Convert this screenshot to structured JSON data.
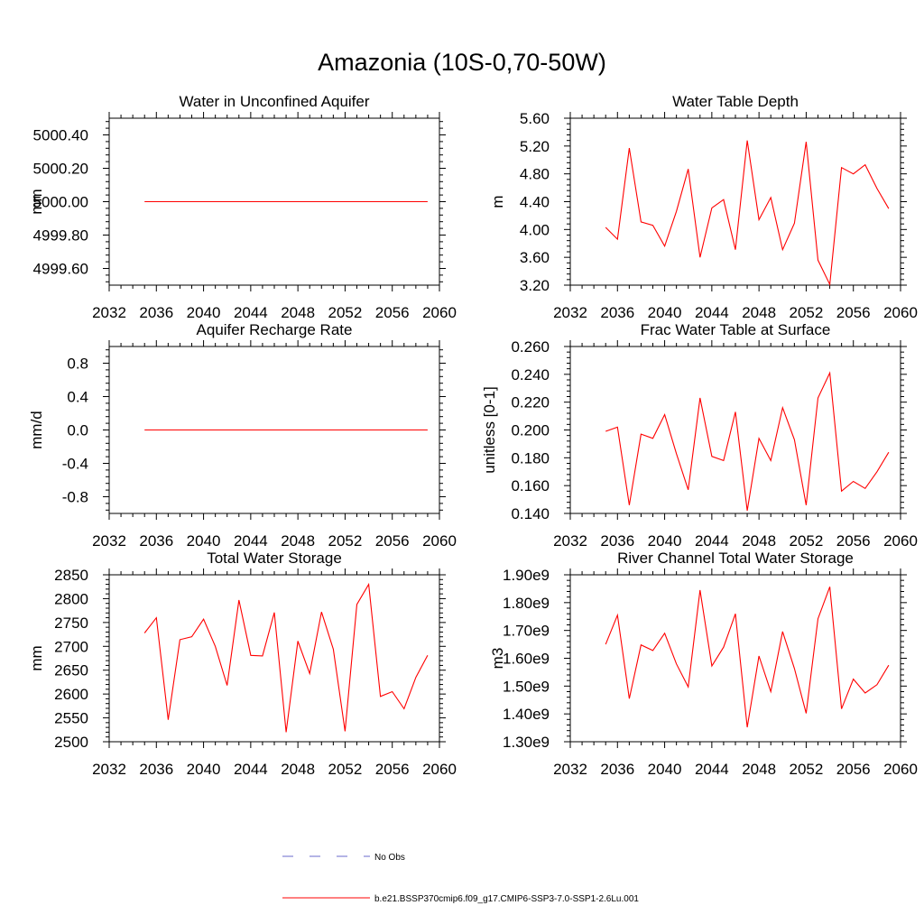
{
  "page_title": "Amazonia (10S-0,70-50W)",
  "legend": {
    "obs_label": "No Obs",
    "obs_color": "#6a6acd",
    "model_label": "b.e21.BSSP370cmip6.f09_g17.CMIP6-SSP3-7.0-SSP1-2.6Lu.001",
    "model_color": "#ff0000"
  },
  "chart_data": [
    {
      "type": "line",
      "title": "Water in Unconfined Aquifer",
      "xlabel": "",
      "ylabel": "mm",
      "xlim": [
        2032,
        2060
      ],
      "ylim": [
        4999.5,
        5000.5
      ],
      "xticks": [
        2032,
        2036,
        2040,
        2044,
        2048,
        2052,
        2056,
        2060
      ],
      "xtick_labels": [
        "2032",
        "2036",
        "2040",
        "2044",
        "2048",
        "2052",
        "2056",
        "2060"
      ],
      "yticks": [
        4999.6,
        4999.8,
        5000.0,
        5000.2,
        5000.4
      ],
      "ytick_labels": [
        "4999.60",
        "4999.80",
        "5000.00",
        "5000.20",
        "5000.40"
      ],
      "grid": false,
      "x": [
        2035,
        2036,
        2037,
        2038,
        2039,
        2040,
        2041,
        2042,
        2043,
        2044,
        2045,
        2046,
        2047,
        2048,
        2049,
        2050,
        2051,
        2052,
        2053,
        2054,
        2055,
        2056,
        2057,
        2058,
        2059
      ],
      "series": [
        {
          "values": [
            5000,
            5000,
            5000,
            5000,
            5000,
            5000,
            5000,
            5000,
            5000,
            5000,
            5000,
            5000,
            5000,
            5000,
            5000,
            5000,
            5000,
            5000,
            5000,
            5000,
            5000,
            5000,
            5000,
            5000,
            5000
          ],
          "color": "#ff0000"
        }
      ]
    },
    {
      "type": "line",
      "title": "Water Table Depth",
      "xlabel": "",
      "ylabel": "m",
      "xlim": [
        2032,
        2060
      ],
      "ylim": [
        3.2,
        5.6
      ],
      "xticks": [
        2032,
        2036,
        2040,
        2044,
        2048,
        2052,
        2056,
        2060
      ],
      "xtick_labels": [
        "2032",
        "2036",
        "2040",
        "2044",
        "2048",
        "2052",
        "2056",
        "2060"
      ],
      "yticks": [
        3.2,
        3.6,
        4.0,
        4.4,
        4.8,
        5.2,
        5.6
      ],
      "ytick_labels": [
        "3.20",
        "3.60",
        "4.00",
        "4.40",
        "4.80",
        "5.20",
        "5.60"
      ],
      "grid": false,
      "x": [
        2035,
        2036,
        2037,
        2038,
        2039,
        2040,
        2041,
        2042,
        2043,
        2044,
        2045,
        2046,
        2047,
        2048,
        2049,
        2050,
        2051,
        2052,
        2053,
        2054,
        2055,
        2056,
        2057,
        2058,
        2059
      ],
      "series": [
        {
          "values": [
            4.03,
            3.86,
            5.17,
            4.11,
            4.06,
            3.76,
            4.26,
            4.87,
            3.6,
            4.31,
            4.43,
            3.71,
            5.28,
            4.14,
            4.46,
            3.71,
            4.09,
            5.26,
            3.56,
            3.21,
            4.89,
            4.8,
            4.93,
            4.59,
            4.3
          ],
          "color": "#ff0000"
        }
      ]
    },
    {
      "type": "line",
      "title": "Aquifer Recharge Rate",
      "xlabel": "",
      "ylabel": "mm/d",
      "xlim": [
        2032,
        2060
      ],
      "ylim": [
        -1.0,
        1.0
      ],
      "xticks": [
        2032,
        2036,
        2040,
        2044,
        2048,
        2052,
        2056,
        2060
      ],
      "xtick_labels": [
        "2032",
        "2036",
        "2040",
        "2044",
        "2048",
        "2052",
        "2056",
        "2060"
      ],
      "yticks": [
        -0.8,
        -0.4,
        0.0,
        0.4,
        0.8
      ],
      "ytick_labels": [
        "-0.8",
        "-0.4",
        "0.0",
        "0.4",
        "0.8"
      ],
      "grid": false,
      "x": [
        2035,
        2036,
        2037,
        2038,
        2039,
        2040,
        2041,
        2042,
        2043,
        2044,
        2045,
        2046,
        2047,
        2048,
        2049,
        2050,
        2051,
        2052,
        2053,
        2054,
        2055,
        2056,
        2057,
        2058,
        2059
      ],
      "series": [
        {
          "values": [
            0,
            0,
            0,
            0,
            0,
            0,
            0,
            0,
            0,
            0,
            0,
            0,
            0,
            0,
            0,
            0,
            0,
            0,
            0,
            0,
            0,
            0,
            0,
            0,
            0
          ],
          "color": "#ff0000"
        }
      ]
    },
    {
      "type": "line",
      "title": "Frac Water Table at Surface",
      "xlabel": "",
      "ylabel": "unitless [0-1]",
      "xlim": [
        2032,
        2060
      ],
      "ylim": [
        0.14,
        0.26
      ],
      "xticks": [
        2032,
        2036,
        2040,
        2044,
        2048,
        2052,
        2056,
        2060
      ],
      "xtick_labels": [
        "2032",
        "2036",
        "2040",
        "2044",
        "2048",
        "2052",
        "2056",
        "2060"
      ],
      "yticks": [
        0.14,
        0.16,
        0.18,
        0.2,
        0.22,
        0.24,
        0.26
      ],
      "ytick_labels": [
        "0.140",
        "0.160",
        "0.180",
        "0.200",
        "0.220",
        "0.240",
        "0.260"
      ],
      "grid": false,
      "x": [
        2035,
        2036,
        2037,
        2038,
        2039,
        2040,
        2041,
        2042,
        2043,
        2044,
        2045,
        2046,
        2047,
        2048,
        2049,
        2050,
        2051,
        2052,
        2053,
        2054,
        2055,
        2056,
        2057,
        2058,
        2059
      ],
      "series": [
        {
          "values": [
            0.199,
            0.202,
            0.146,
            0.197,
            0.194,
            0.211,
            0.183,
            0.157,
            0.223,
            0.181,
            0.178,
            0.213,
            0.142,
            0.194,
            0.178,
            0.216,
            0.193,
            0.146,
            0.223,
            0.241,
            0.156,
            0.163,
            0.158,
            0.17,
            0.184
          ],
          "color": "#ff0000"
        }
      ]
    },
    {
      "type": "line",
      "title": "Total Water Storage",
      "xlabel": "",
      "ylabel": "mm",
      "xlim": [
        2032,
        2060
      ],
      "ylim": [
        2500,
        2850
      ],
      "xticks": [
        2032,
        2036,
        2040,
        2044,
        2048,
        2052,
        2056,
        2060
      ],
      "xtick_labels": [
        "2032",
        "2036",
        "2040",
        "2044",
        "2048",
        "2052",
        "2056",
        "2060"
      ],
      "yticks": [
        2500,
        2550,
        2600,
        2650,
        2700,
        2750,
        2800,
        2850
      ],
      "ytick_labels": [
        "2500",
        "2550",
        "2600",
        "2650",
        "2700",
        "2750",
        "2800",
        "2850"
      ],
      "grid": false,
      "x": [
        2035,
        2036,
        2037,
        2038,
        2039,
        2040,
        2041,
        2042,
        2043,
        2044,
        2045,
        2046,
        2047,
        2048,
        2049,
        2050,
        2051,
        2052,
        2053,
        2054,
        2055,
        2056,
        2057,
        2058,
        2059
      ],
      "series": [
        {
          "values": [
            2728,
            2760,
            2546,
            2714,
            2720,
            2757,
            2700,
            2618,
            2797,
            2681,
            2680,
            2771,
            2520,
            2711,
            2643,
            2772,
            2694,
            2522,
            2788,
            2830,
            2595,
            2605,
            2569,
            2635,
            2681
          ],
          "color": "#ff0000"
        }
      ]
    },
    {
      "type": "line",
      "title": "River Channel Total Water Storage",
      "xlabel": "",
      "ylabel": "m3",
      "xlim": [
        2032,
        2060
      ],
      "ylim": [
        1300000000,
        1900000000
      ],
      "xticks": [
        2032,
        2036,
        2040,
        2044,
        2048,
        2052,
        2056,
        2060
      ],
      "xtick_labels": [
        "2032",
        "2036",
        "2040",
        "2044",
        "2048",
        "2052",
        "2056",
        "2060"
      ],
      "yticks": [
        1300000000,
        1400000000,
        1500000000,
        1600000000,
        1700000000,
        1800000000,
        1900000000
      ],
      "ytick_labels": [
        "1.30e9",
        "1.40e9",
        "1.50e9",
        "1.60e9",
        "1.70e9",
        "1.80e9",
        "1.90e9"
      ],
      "grid": false,
      "x": [
        2035,
        2036,
        2037,
        2038,
        2039,
        2040,
        2041,
        2042,
        2043,
        2044,
        2045,
        2046,
        2047,
        2048,
        2049,
        2050,
        2051,
        2052,
        2053,
        2054,
        2055,
        2056,
        2057,
        2058,
        2059
      ],
      "series": [
        {
          "values": [
            1650000000,
            1755000000,
            1455000000,
            1648000000,
            1628000000,
            1690000000,
            1580000000,
            1497000000,
            1845000000,
            1572000000,
            1640000000,
            1760000000,
            1352000000,
            1608000000,
            1480000000,
            1696000000,
            1563000000,
            1402000000,
            1742000000,
            1857000000,
            1418000000,
            1525000000,
            1475000000,
            1505000000,
            1575000000
          ],
          "color": "#ff0000"
        }
      ]
    }
  ]
}
